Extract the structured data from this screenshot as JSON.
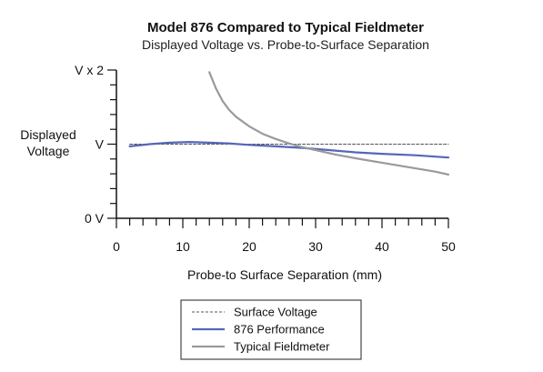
{
  "chart_data": {
    "type": "line",
    "title": "Model 876 Compared to Typical Fieldmeter",
    "subtitle": "Displayed Voltage vs. Probe-to-Surface Separation",
    "xlabel": "Probe-to Surface Separation (mm)",
    "ylabel": "Displayed Voltage",
    "xlim": [
      0,
      50
    ],
    "x_ticks": [
      0,
      10,
      20,
      30,
      40,
      50
    ],
    "ylim": [
      0,
      2
    ],
    "y_ticks": [
      {
        "value": 0,
        "label": "0 V"
      },
      {
        "value": 1,
        "label": "V"
      },
      {
        "value": 2,
        "label": "V x 2"
      }
    ],
    "grid": false,
    "legend_position": "bottom-center",
    "series": [
      {
        "name": "Surface Voltage",
        "style": "dashed",
        "color": "#555555",
        "x": [
          2,
          50
        ],
        "y": [
          1.0,
          1.0
        ]
      },
      {
        "name": "876 Performance",
        "style": "solid",
        "color": "#5566b8",
        "x": [
          2,
          5,
          8,
          11,
          14,
          17,
          20,
          24,
          28,
          32,
          36,
          40,
          45,
          50
        ],
        "y": [
          0.97,
          1.0,
          1.02,
          1.03,
          1.02,
          1.01,
          0.99,
          0.97,
          0.95,
          0.92,
          0.89,
          0.87,
          0.85,
          0.82
        ]
      },
      {
        "name": "Typical Fieldmeter",
        "style": "solid",
        "color": "#9a9a9a",
        "x": [
          14,
          15,
          16,
          17,
          18,
          20,
          22,
          24,
          26,
          28,
          30,
          33,
          36,
          40,
          44,
          48,
          50
        ],
        "y": [
          1.97,
          1.75,
          1.58,
          1.46,
          1.37,
          1.24,
          1.14,
          1.07,
          1.01,
          0.96,
          0.92,
          0.86,
          0.81,
          0.75,
          0.69,
          0.63,
          0.59
        ]
      }
    ]
  },
  "colors": {
    "axis": "#111111",
    "surface_voltage": "#555555",
    "performance_876": "#5566b8",
    "typical_fieldmeter": "#9a9a9a"
  }
}
